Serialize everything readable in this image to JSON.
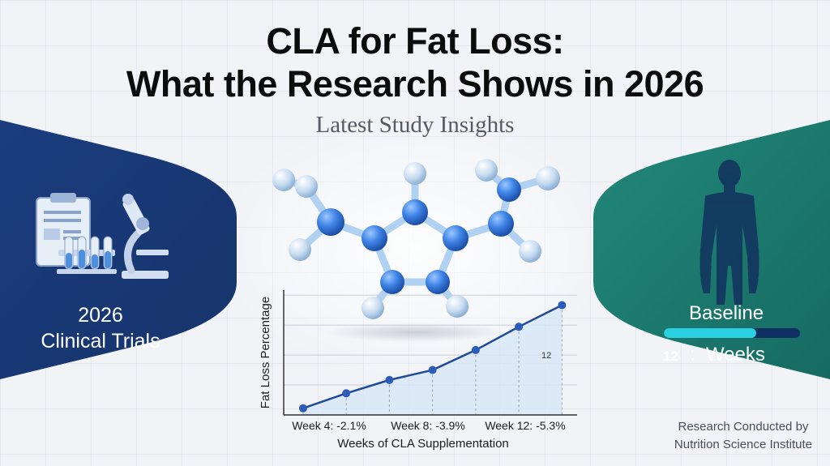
{
  "header": {
    "title_line1": "CLA for Fat Loss:",
    "title_line2": "What the Research Shows in 2026",
    "subtitle": "Latest Study Insights"
  },
  "left_panel": {
    "label_line1": "2026",
    "label_line2": "Clinical Trials",
    "icons": [
      "clipboard-icon",
      "test-tubes-icon",
      "microscope-icon"
    ],
    "color": "#1a3a78"
  },
  "right_panel": {
    "baseline_label": "Baseline",
    "weeks_number": "12",
    "weeks_colon": ":",
    "weeks_label": "Weeks",
    "progress": 0.68,
    "icons": [
      "human-silhouette-icon"
    ],
    "color": "#1e7a6e",
    "progress_color": "#2ad0e0"
  },
  "footer": {
    "credit_line1": "Research Conducted by",
    "credit_line2": "Nutrition Science Institute"
  },
  "colors": {
    "line": "#1f4a9a",
    "node": "#2f5fb8",
    "fill": "#cfe0f5",
    "text": "#1c1c1c"
  },
  "chart_data": {
    "type": "line",
    "title": "",
    "xlabel": "Weeks of CLA Supplementation",
    "ylabel": "Fat Loss Percentage",
    "x": [
      1,
      2,
      3,
      4,
      5,
      6,
      7
    ],
    "values": [
      0.4,
      1.3,
      2.1,
      2.7,
      3.9,
      5.3,
      6.6
    ],
    "ylim": [
      0,
      7.5
    ],
    "grid": true,
    "tick_labels": [
      "Week 4: -2.1%",
      "Week 8: -3.9%",
      "Week 12: -5.3%"
    ],
    "annotation": "12"
  }
}
